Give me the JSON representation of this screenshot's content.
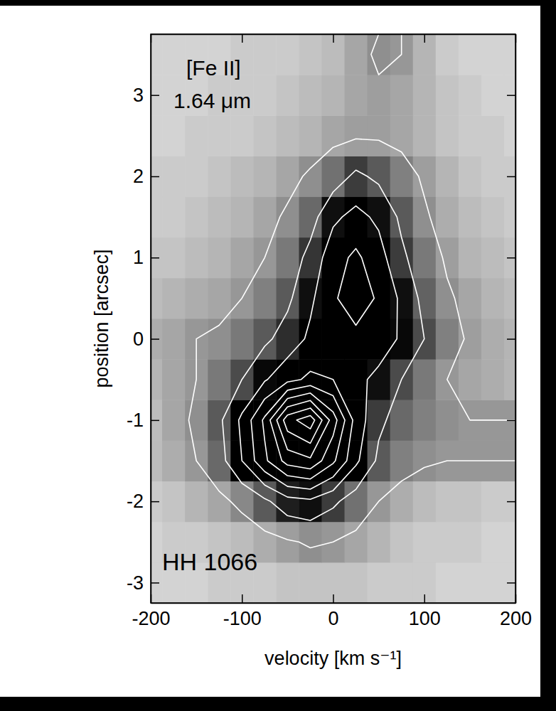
{
  "chart_data": {
    "type": "contour",
    "xlabel": "velocity [km s⁻¹]",
    "ylabel": "position [arcsec]",
    "annotations": [
      "[Fe II]",
      "1.64 μm",
      "HH 1066"
    ],
    "xlim": [
      -200,
      200
    ],
    "ylim": [
      -3.25,
      3.75
    ],
    "xticks": [
      -200,
      -100,
      0,
      100,
      200
    ],
    "yticks": [
      -3,
      -2,
      -1,
      0,
      1,
      2,
      3
    ],
    "x": [
      -200,
      -175,
      -150,
      -125,
      -100,
      -75,
      -50,
      -25,
      0,
      25,
      50,
      75,
      100,
      125,
      150,
      175,
      200
    ],
    "y": [
      -3,
      -2.5,
      -2,
      -1.5,
      -1,
      -0.5,
      0,
      0.5,
      1,
      1.5,
      2,
      2.5,
      3,
      3.5
    ],
    "z": [
      [
        0.2,
        0.2,
        0.2,
        0.3,
        0.3,
        0.3,
        0.4,
        0.4,
        0.4,
        0.4,
        0.3,
        0.3,
        0.3,
        0.2,
        0.2,
        0.2,
        0.2
      ],
      [
        0.2,
        0.3,
        0.3,
        0.4,
        0.5,
        0.7,
        0.9,
        1.1,
        1.0,
        0.8,
        0.6,
        0.4,
        0.3,
        0.3,
        0.3,
        0.2,
        0.2
      ],
      [
        0.3,
        0.4,
        0.6,
        0.8,
        1.2,
        1.8,
        2.6,
        2.8,
        2.2,
        1.5,
        1.0,
        0.7,
        0.5,
        0.4,
        0.4,
        0.3,
        0.3
      ],
      [
        0.5,
        0.7,
        1.0,
        1.6,
        3.0,
        4.8,
        6.4,
        6.8,
        5.2,
        3.2,
        1.8,
        1.3,
        1.1,
        1.0,
        1.0,
        1.0,
        1.0
      ],
      [
        0.5,
        0.8,
        1.1,
        1.8,
        3.2,
        5.2,
        8.6,
        9.6,
        6.5,
        3.6,
        2.2,
        1.6,
        1.3,
        1.1,
        1.0,
        1.0,
        1.0
      ],
      [
        0.6,
        0.8,
        1.0,
        1.4,
        2.0,
        2.9,
        3.7,
        4.2,
        4.0,
        3.2,
        2.8,
        2.0,
        1.4,
        1.0,
        0.8,
        0.7,
        0.6
      ],
      [
        0.7,
        0.8,
        1.0,
        1.1,
        1.4,
        1.8,
        2.4,
        3.2,
        3.8,
        3.8,
        3.4,
        2.9,
        2.0,
        1.3,
        0.9,
        0.7,
        0.6
      ],
      [
        0.5,
        0.6,
        0.7,
        0.8,
        1.0,
        1.3,
        1.8,
        2.8,
        3.9,
        4.4,
        3.9,
        2.8,
        1.7,
        1.1,
        0.8,
        0.6,
        0.5
      ],
      [
        0.4,
        0.4,
        0.5,
        0.6,
        0.8,
        1.0,
        1.4,
        2.3,
        3.6,
        4.2,
        3.4,
        2.2,
        1.4,
        0.9,
        0.6,
        0.5,
        0.4
      ],
      [
        0.3,
        0.3,
        0.4,
        0.5,
        0.6,
        0.8,
        1.1,
        1.6,
        2.8,
        3.3,
        2.8,
        1.8,
        1.1,
        0.7,
        0.5,
        0.4,
        0.3
      ],
      [
        0.3,
        0.3,
        0.3,
        0.4,
        0.5,
        0.6,
        0.8,
        1.1,
        1.5,
        2.2,
        1.8,
        1.3,
        0.9,
        0.6,
        0.4,
        0.3,
        0.3
      ],
      [
        0.2,
        0.2,
        0.3,
        0.3,
        0.3,
        0.4,
        0.5,
        0.6,
        0.8,
        0.9,
        0.9,
        0.8,
        0.6,
        0.4,
        0.3,
        0.3,
        0.2
      ],
      [
        0.2,
        0.2,
        0.2,
        0.3,
        0.3,
        0.3,
        0.4,
        0.5,
        0.6,
        0.8,
        0.9,
        0.8,
        0.6,
        0.4,
        0.3,
        0.2,
        0.2
      ],
      [
        0.2,
        0.2,
        0.2,
        0.2,
        0.3,
        0.3,
        0.3,
        0.4,
        0.5,
        0.8,
        1.1,
        1.0,
        0.6,
        0.3,
        0.2,
        0.2,
        0.2
      ]
    ],
    "zlim": [
      0,
      3
    ],
    "contour_levels": [
      1,
      2,
      3,
      4,
      5,
      6,
      7,
      8,
      9
    ]
  }
}
